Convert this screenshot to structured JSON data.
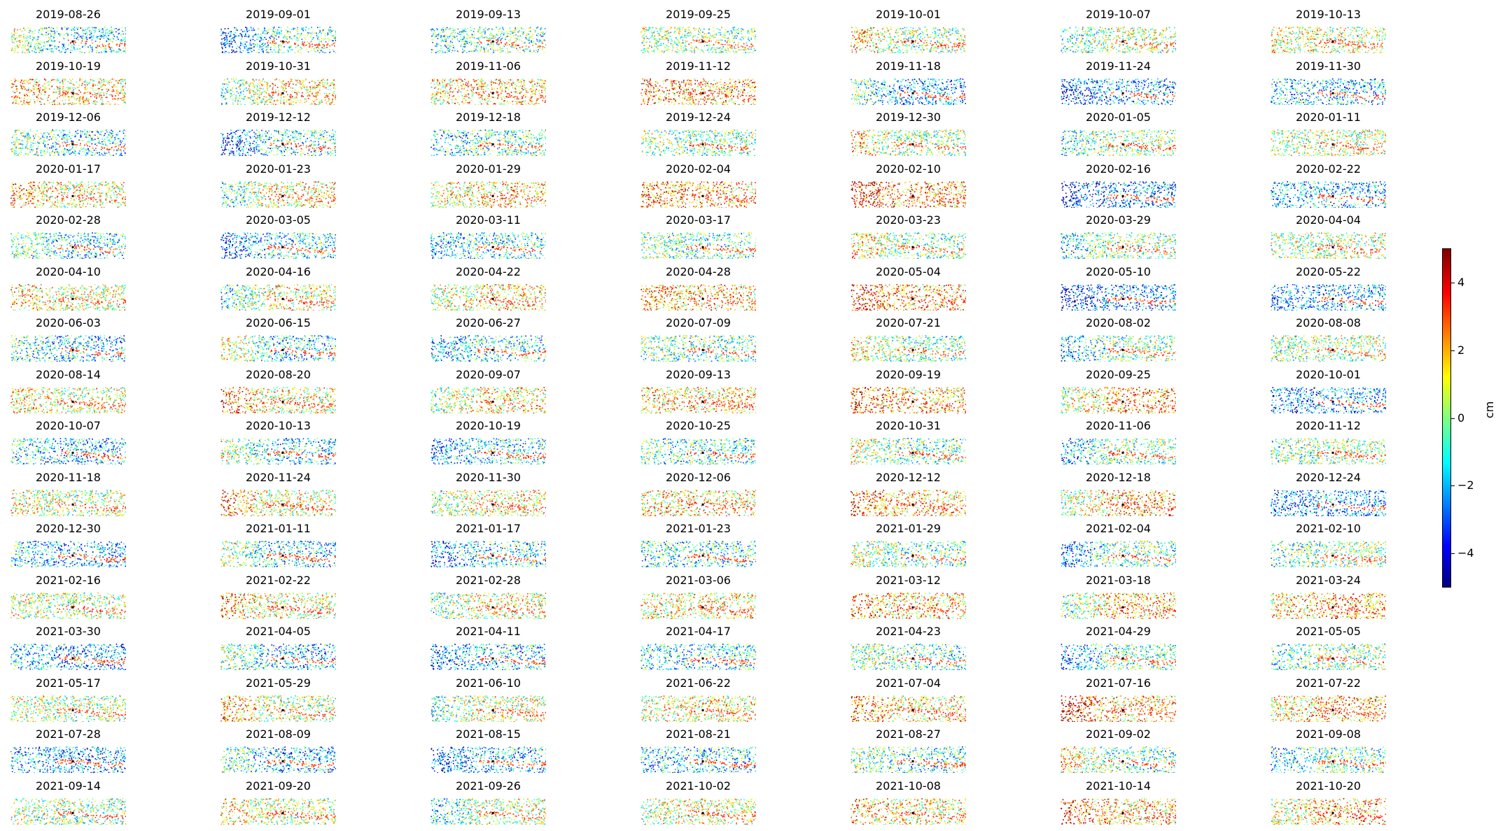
{
  "chart_data": {
    "type": "scatter",
    "description_kind": "small-multiples",
    "panel_titles": [
      "2019-08-26",
      "2019-09-01",
      "2019-09-13",
      "2019-09-25",
      "2019-10-01",
      "2019-10-07",
      "2019-10-13",
      "2019-10-19",
      "2019-10-31",
      "2019-11-06",
      "2019-11-12",
      "2019-11-18",
      "2019-11-24",
      "2019-11-30",
      "2019-12-06",
      "2019-12-12",
      "2019-12-18",
      "2019-12-24",
      "2019-12-30",
      "2020-01-05",
      "2020-01-11",
      "2020-01-17",
      "2020-01-23",
      "2020-01-29",
      "2020-02-04",
      "2020-02-10",
      "2020-02-16",
      "2020-02-22",
      "2020-02-28",
      "2020-03-05",
      "2020-03-11",
      "2020-03-17",
      "2020-03-23",
      "2020-03-29",
      "2020-04-04",
      "2020-04-10",
      "2020-04-16",
      "2020-04-22",
      "2020-04-28",
      "2020-05-04",
      "2020-05-10",
      "2020-05-22",
      "2020-06-03",
      "2020-06-15",
      "2020-06-27",
      "2020-07-09",
      "2020-07-21",
      "2020-08-02",
      "2020-08-08",
      "2020-08-14",
      "2020-08-20",
      "2020-09-07",
      "2020-09-13",
      "2020-09-19",
      "2020-09-25",
      "2020-10-01",
      "2020-10-07",
      "2020-10-13",
      "2020-10-19",
      "2020-10-25",
      "2020-10-31",
      "2020-11-06",
      "2020-11-12",
      "2020-11-18",
      "2020-11-24",
      "2020-11-30",
      "2020-12-06",
      "2020-12-12",
      "2020-12-18",
      "2020-12-24",
      "2020-12-30",
      "2021-01-11",
      "2021-01-17",
      "2021-01-23",
      "2021-01-29",
      "2021-02-04",
      "2021-02-10",
      "2021-02-16",
      "2021-02-22",
      "2021-02-28",
      "2021-03-06",
      "2021-03-12",
      "2021-03-18",
      "2021-03-24",
      "2021-03-30",
      "2021-04-05",
      "2021-04-11",
      "2021-04-17",
      "2021-04-23",
      "2021-04-29",
      "2021-05-05",
      "2021-05-17",
      "2021-05-29",
      "2021-06-10",
      "2021-06-22",
      "2021-07-04",
      "2021-07-16",
      "2021-07-22",
      "2021-07-28",
      "2021-08-09",
      "2021-08-15",
      "2021-08-21",
      "2021-08-27",
      "2021-09-02",
      "2021-09-08",
      "2021-09-14",
      "2021-09-20",
      "2021-09-26",
      "2021-10-02",
      "2021-10-08",
      "2021-10-14",
      "2021-10-20"
    ],
    "columns": 7,
    "colormap": "jet",
    "colorbar": {
      "label": "cm",
      "vmin": -5,
      "vmax": 5,
      "ticks": [
        4,
        2,
        0,
        -2,
        -4
      ],
      "tick_labels": [
        "4",
        "2",
        "0",
        "−2",
        "−4"
      ]
    },
    "axes_visible": false,
    "reference_point_color": "#000000"
  }
}
